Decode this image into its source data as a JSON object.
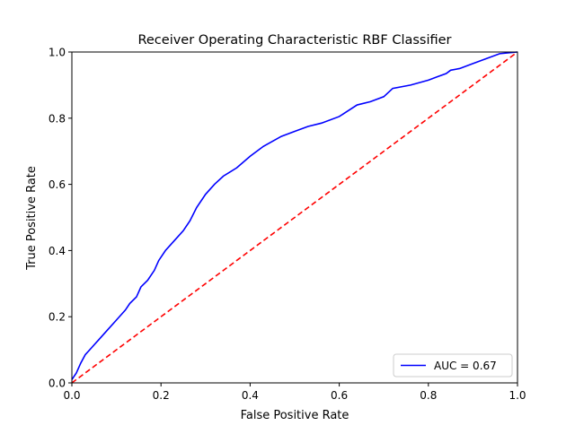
{
  "chart_data": {
    "type": "line",
    "title": "Receiver Operating Characteristic RBF Classifier",
    "xlabel": "False Positive Rate",
    "ylabel": "True Positive Rate",
    "xlim": [
      0,
      1
    ],
    "ylim": [
      0,
      1
    ],
    "xticks": [
      "0.0",
      "0.2",
      "0.4",
      "0.6",
      "0.8",
      "1.0"
    ],
    "yticks": [
      "0.0",
      "0.2",
      "0.4",
      "0.6",
      "0.8",
      "1.0"
    ],
    "grid": false,
    "legend_position": "lower right",
    "series": [
      {
        "name": "AUC = 0.67",
        "color": "#0000ff",
        "style": "solid",
        "x": [
          0.0,
          0.01,
          0.02,
          0.03,
          0.04,
          0.06,
          0.08,
          0.1,
          0.12,
          0.13,
          0.145,
          0.155,
          0.17,
          0.185,
          0.195,
          0.21,
          0.23,
          0.25,
          0.265,
          0.28,
          0.3,
          0.32,
          0.34,
          0.37,
          0.4,
          0.43,
          0.47,
          0.5,
          0.53,
          0.56,
          0.6,
          0.64,
          0.67,
          0.7,
          0.72,
          0.76,
          0.8,
          0.82,
          0.84,
          0.85,
          0.87,
          0.9,
          0.93,
          0.96,
          1.0
        ],
        "y": [
          0.01,
          0.03,
          0.06,
          0.085,
          0.1,
          0.13,
          0.16,
          0.19,
          0.22,
          0.24,
          0.26,
          0.29,
          0.31,
          0.34,
          0.37,
          0.4,
          0.43,
          0.46,
          0.49,
          0.53,
          0.57,
          0.6,
          0.625,
          0.65,
          0.685,
          0.715,
          0.745,
          0.76,
          0.775,
          0.785,
          0.805,
          0.84,
          0.85,
          0.865,
          0.89,
          0.9,
          0.915,
          0.925,
          0.935,
          0.945,
          0.95,
          0.965,
          0.98,
          0.995,
          1.0
        ]
      },
      {
        "name": "",
        "color": "#ff0000",
        "style": "dashed",
        "x": [
          0,
          1
        ],
        "y": [
          0,
          1
        ]
      }
    ]
  }
}
